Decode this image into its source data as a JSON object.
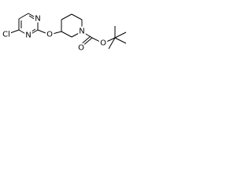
{
  "atoms": {
    "chlorine": "Cl",
    "pyrimidine_n1": "N",
    "pyrimidine_n3": "N",
    "ether_o": "O",
    "piperidine_n": "N",
    "carbonyl_o": "O",
    "ester_o": "O"
  }
}
